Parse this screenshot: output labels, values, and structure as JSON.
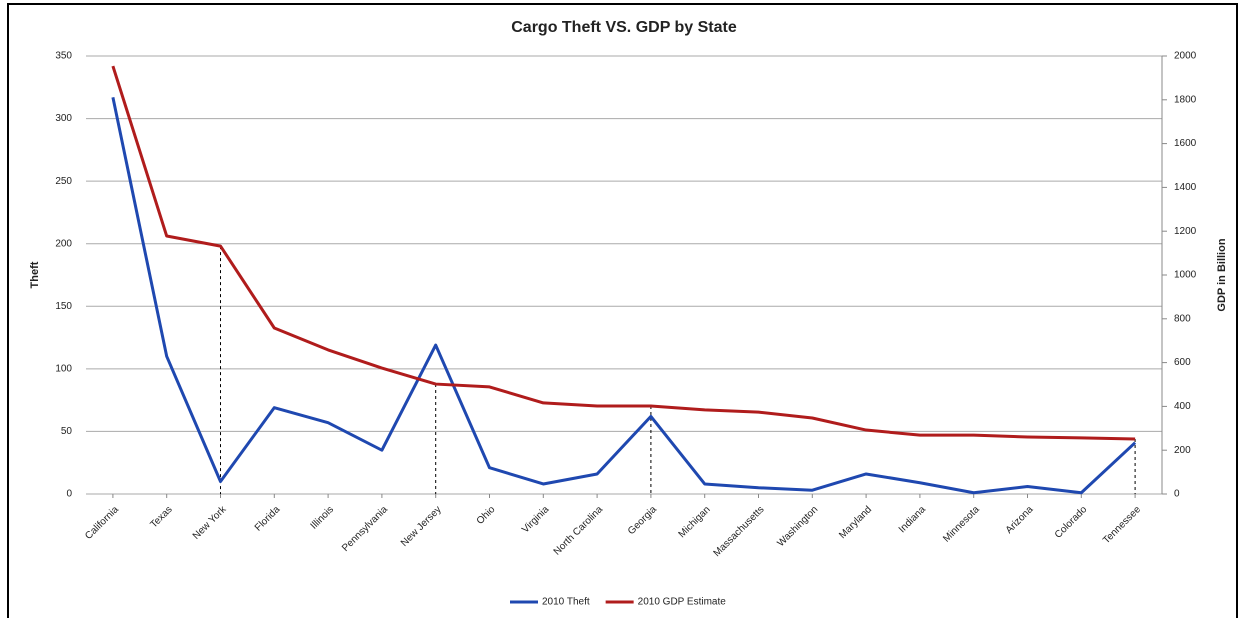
{
  "chart_data": {
    "type": "line",
    "title": "Cargo Theft VS. GDP by State",
    "y_label": "Theft",
    "y2_label": "GDP in Billion",
    "categories": [
      "California",
      "Texas",
      "New York",
      "Florida",
      "Illinois",
      "Pennsylvania",
      "New Jersey",
      "Ohio",
      "Virginia",
      "North Carolina",
      "Georgia",
      "Michigan",
      "Massachusetts",
      "Washington",
      "Maryland",
      "Indiana",
      "Minnesota",
      "Arizona",
      "Colorado",
      "Tennessee"
    ],
    "series": [
      {
        "name": "2010 Theft",
        "color": "#1f48b0",
        "values": [
          317,
          110,
          10,
          69,
          57,
          35,
          119,
          21,
          8,
          16,
          62,
          8,
          5,
          3,
          16,
          9,
          1,
          6,
          1,
          41
        ]
      },
      {
        "name": "2010 GDP Estimate",
        "color": "#b01c1c",
        "axis": "y2",
        "values": [
          1954,
          1178,
          1132,
          758,
          658,
          575,
          502,
          489,
          416,
          402,
          402,
          384,
          374,
          347,
          292,
          269,
          269,
          260,
          256,
          251
        ]
      }
    ],
    "drop_lines": [
      "New York",
      "New Jersey",
      "Georgia",
      "Tennessee"
    ],
    "ylim": [
      0,
      350
    ],
    "yticks": [
      0,
      50,
      100,
      150,
      200,
      250,
      300,
      350
    ],
    "y2lim": [
      0,
      2000
    ],
    "y2ticks": [
      0,
      200,
      400,
      600,
      800,
      1000,
      1200,
      1400,
      1600,
      1800,
      2000
    ],
    "grid": true,
    "legend": "bottom"
  }
}
